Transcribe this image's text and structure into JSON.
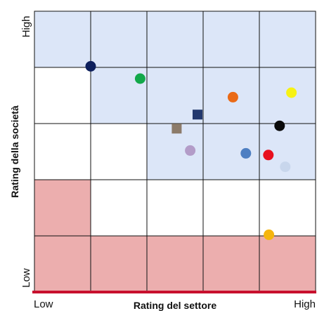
{
  "chart_data": {
    "type": "scatter",
    "xlabel": "Rating del settore",
    "ylabel": "Rating della società",
    "x_tick_labels": [
      "Low",
      "High"
    ],
    "y_tick_labels": [
      "Low",
      "High"
    ],
    "xlim": [
      0,
      5
    ],
    "ylim": [
      0,
      5
    ],
    "grid": true,
    "colors": {
      "blue_zone": "#dce6f8",
      "red_zone": "#ecaeae",
      "white_zone": "#ffffff",
      "grid_line": "#111111",
      "baseline": "#c8102e"
    },
    "zones": [
      [
        "blue",
        "blue",
        "blue",
        "blue",
        "blue"
      ],
      [
        "white",
        "blue",
        "blue",
        "blue",
        "blue"
      ],
      [
        "white",
        "white",
        "blue",
        "blue",
        "blue"
      ],
      [
        "red",
        "white",
        "white",
        "white",
        "white"
      ],
      [
        "red",
        "red",
        "red",
        "red",
        "red"
      ]
    ],
    "points": [
      {
        "x": 1.0,
        "y": 4.02,
        "color": "#0d1f5c",
        "shape": "circle"
      },
      {
        "x": 1.88,
        "y": 3.8,
        "color": "#12a84a",
        "shape": "circle"
      },
      {
        "x": 4.57,
        "y": 3.55,
        "color": "#f7f214",
        "shape": "circle"
      },
      {
        "x": 3.53,
        "y": 3.47,
        "color": "#ea6a17",
        "shape": "circle"
      },
      {
        "x": 2.9,
        "y": 3.16,
        "color": "#22386e",
        "shape": "square"
      },
      {
        "x": 4.36,
        "y": 2.96,
        "color": "#0a0a0a",
        "shape": "circle"
      },
      {
        "x": 2.53,
        "y": 2.91,
        "color": "#8c7b6a",
        "shape": "square"
      },
      {
        "x": 2.77,
        "y": 2.52,
        "color": "#b39cc8",
        "shape": "circle"
      },
      {
        "x": 3.76,
        "y": 2.47,
        "color": "#4e7fc2",
        "shape": "circle"
      },
      {
        "x": 4.16,
        "y": 2.44,
        "color": "#e8101e",
        "shape": "circle"
      },
      {
        "x": 4.46,
        "y": 2.23,
        "color": "#c8d6ec",
        "shape": "circle"
      },
      {
        "x": 4.17,
        "y": 1.02,
        "color": "#f5b50e",
        "shape": "circle"
      }
    ]
  }
}
